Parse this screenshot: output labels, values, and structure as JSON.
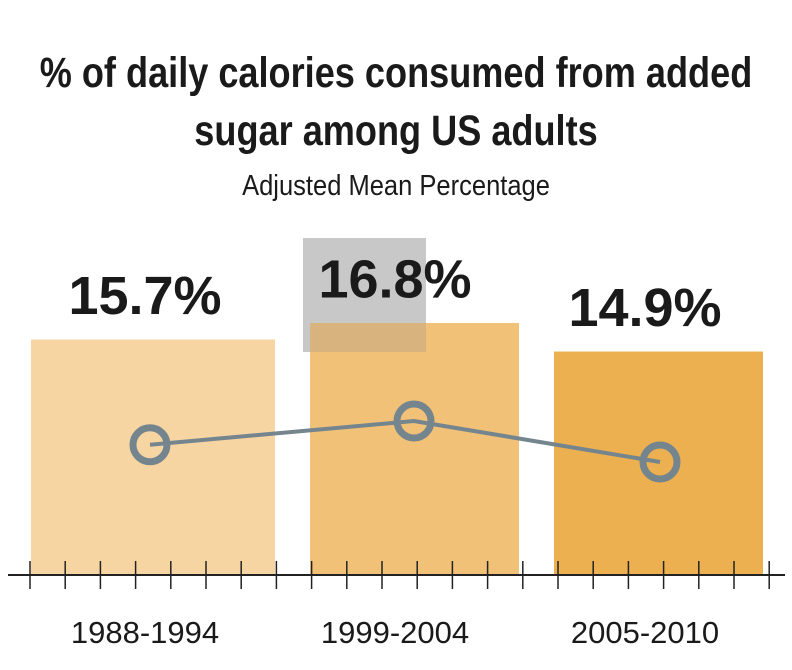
{
  "chart_data": {
    "type": "bar",
    "title": "% of daily calories consumed from added sugar among US adults",
    "subtitle": "Adjusted Mean Percentage",
    "categories": [
      "1988-1994",
      "1999-2004",
      "2005-2010"
    ],
    "values": [
      15.7,
      16.8,
      14.9
    ],
    "value_labels": [
      "15.7%",
      "16.8%",
      "14.9%"
    ],
    "colors": [
      "#f6d5a2",
      "#f2c178",
      "#edb050"
    ],
    "line_color": "#74858e"
  }
}
